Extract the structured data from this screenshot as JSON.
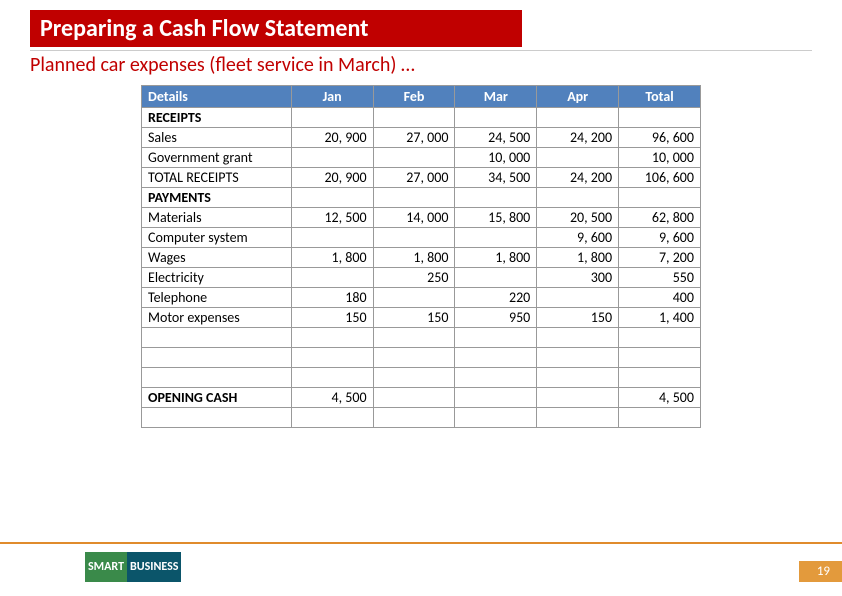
{
  "title": "Preparing a Cash Flow Statement",
  "subtitle": "Planned car expenses (fleet service in March) …",
  "colors": {
    "title_bg": "#c00000",
    "header_bg": "#5181bd",
    "accent": "#e39a3c",
    "logo_green": "#3a8a4a",
    "logo_teal": "#0b556a"
  },
  "table": {
    "headers": [
      "Details",
      "Jan",
      "Feb",
      "Mar",
      "Apr",
      "Total"
    ],
    "rows": [
      {
        "type": "section",
        "cells": [
          "RECEIPTS",
          "",
          "",
          "",
          "",
          ""
        ]
      },
      {
        "type": "data",
        "cells": [
          "Sales",
          "20, 900",
          "27, 000",
          "24, 500",
          "24, 200",
          "96, 600"
        ]
      },
      {
        "type": "data",
        "cells": [
          "Government grant",
          "",
          "",
          "10, 000",
          "",
          "10, 000"
        ]
      },
      {
        "type": "data",
        "cells": [
          "TOTAL RECEIPTS",
          "20, 900",
          "27, 000",
          "34, 500",
          "24, 200",
          "106, 600"
        ]
      },
      {
        "type": "section",
        "cells": [
          "PAYMENTS",
          "",
          "",
          "",
          "",
          ""
        ]
      },
      {
        "type": "data",
        "cells": [
          "Materials",
          "12, 500",
          "14, 000",
          "15, 800",
          "20, 500",
          "62, 800"
        ]
      },
      {
        "type": "data",
        "cells": [
          "Computer system",
          "",
          "",
          "",
          "9, 600",
          "9, 600"
        ]
      },
      {
        "type": "data",
        "cells": [
          "Wages",
          "1, 800",
          "1, 800",
          "1, 800",
          "1, 800",
          "7, 200"
        ]
      },
      {
        "type": "data",
        "cells": [
          "Electricity",
          "",
          "250",
          "",
          "300",
          "550"
        ]
      },
      {
        "type": "data",
        "cells": [
          "Telephone",
          "180",
          "",
          "220",
          "",
          "400"
        ]
      },
      {
        "type": "data",
        "cells": [
          "Motor expenses",
          "150",
          "150",
          "950",
          "150",
          "1, 400"
        ]
      },
      {
        "type": "blank",
        "cells": [
          "",
          "",
          "",
          "",
          "",
          ""
        ]
      },
      {
        "type": "blank",
        "cells": [
          "",
          "",
          "",
          "",
          "",
          ""
        ]
      },
      {
        "type": "blank",
        "cells": [
          "",
          "",
          "",
          "",
          "",
          ""
        ]
      },
      {
        "type": "section",
        "cells": [
          "OPENING CASH",
          "4, 500",
          "",
          "",
          "",
          "4, 500"
        ]
      },
      {
        "type": "blank",
        "cells": [
          "",
          "",
          "",
          "",
          "",
          ""
        ]
      }
    ]
  },
  "logo": {
    "left": "SMART",
    "right": "BUSINESS"
  },
  "page_number": "19"
}
